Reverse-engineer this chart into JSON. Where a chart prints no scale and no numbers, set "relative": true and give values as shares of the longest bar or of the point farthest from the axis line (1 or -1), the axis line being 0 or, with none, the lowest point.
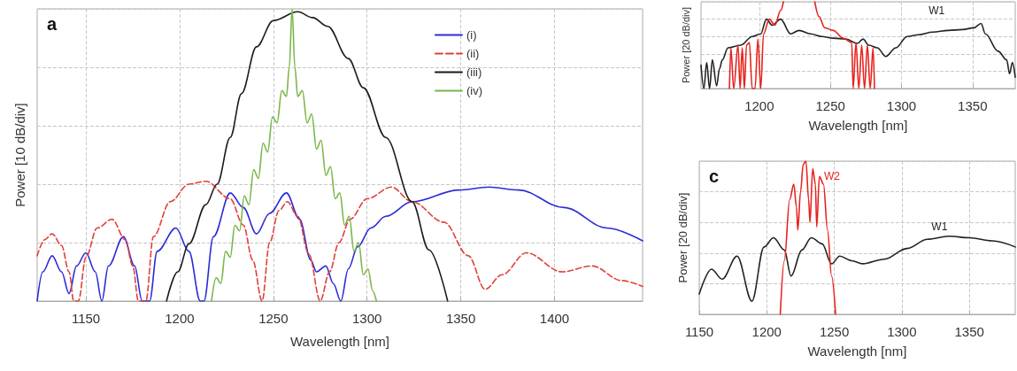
{
  "chart_data": [
    {
      "type": "line",
      "title": "a",
      "xlabel": "Wavelength [nm]",
      "ylabel": "Power [10 dB/div]",
      "relative": true,
      "xlim": [
        1124,
        1447
      ],
      "xticks": [
        1150,
        1200,
        1250,
        1300,
        1350,
        1400
      ],
      "grid": true,
      "legend": "top right",
      "series": [
        {
          "name": "(i)",
          "color": "#2b2bd8",
          "line_style": "solid",
          "x": [
            1124,
            1127,
            1132,
            1137,
            1141,
            1145,
            1150,
            1155,
            1158.5,
            1162,
            1170,
            1176,
            1180,
            1184,
            1188,
            1198,
            1205,
            1211,
            1213,
            1218,
            1227,
            1234,
            1241,
            1248,
            1257,
            1264,
            1270,
            1273,
            1278,
            1282,
            1286,
            1290,
            1295,
            1302,
            1310,
            1324,
            1349,
            1365,
            1381,
            1405,
            1428,
            1447
          ],
          "values": [
            0,
            0.1,
            0.155,
            0.1,
            0.026,
            0.12,
            0.165,
            0.1,
            0,
            0.12,
            0.22,
            0.12,
            0,
            0,
            0.17,
            0.25,
            0.17,
            0,
            0,
            0.22,
            0.37,
            0.32,
            0.23,
            0.3,
            0.37,
            0.28,
            0.14,
            0.1,
            0.12,
            0.06,
            0,
            0.11,
            0.186,
            0.25,
            0.29,
            0.34,
            0.38,
            0.39,
            0.38,
            0.32,
            0.25,
            0.206
          ]
        },
        {
          "name": "(ii)",
          "color": "#e0403c",
          "line_style": "dashed",
          "x": [
            1124,
            1128,
            1132,
            1137,
            1141,
            1143.5,
            1146,
            1150,
            1156,
            1164,
            1171,
            1175,
            1178,
            1182,
            1186,
            1195,
            1205,
            1214,
            1227,
            1234,
            1239,
            1244,
            1248,
            1253,
            1257.5,
            1263,
            1269,
            1275,
            1280,
            1285,
            1291,
            1300,
            1313,
            1324,
            1341,
            1354,
            1363,
            1372,
            1385,
            1404,
            1420,
            1436,
            1447
          ],
          "values": [
            0.155,
            0.21,
            0.23,
            0.19,
            0.1,
            0,
            0,
            0.15,
            0.25,
            0.28,
            0.21,
            0.12,
            0,
            0,
            0.22,
            0.34,
            0.4,
            0.41,
            0.35,
            0.26,
            0.14,
            0,
            0.2,
            0.31,
            0.34,
            0.29,
            0.16,
            0,
            0.1,
            0.2,
            0.28,
            0.35,
            0.39,
            0.34,
            0.27,
            0.155,
            0.04,
            0.09,
            0.165,
            0.1,
            0.12,
            0.07,
            0.05
          ]
        },
        {
          "name": "(iii)",
          "color": "#1a1a1a",
          "line_style": "solid",
          "x": [
            1193,
            1199,
            1205,
            1214,
            1220,
            1227,
            1233,
            1241,
            1250,
            1263,
            1271,
            1279,
            1290,
            1298,
            1310,
            1324,
            1333,
            1343
          ],
          "values": [
            0,
            0.1,
            0.196,
            0.33,
            0.4,
            0.56,
            0.71,
            0.87,
            0.96,
            0.99,
            0.97,
            0.94,
            0.83,
            0.73,
            0.56,
            0.34,
            0.175,
            0
          ]
        },
        {
          "name": "(iv)",
          "color": "#7ab648",
          "line_style": "solid",
          "x": [
            1217,
            1219.5,
            1222,
            1224.5,
            1227,
            1229.5,
            1232,
            1234.5,
            1237,
            1239.5,
            1242,
            1244.5,
            1247,
            1249.5,
            1252,
            1254.5,
            1257,
            1258.5,
            1260,
            1261.5,
            1263,
            1265.5,
            1268,
            1270.5,
            1273,
            1275.5,
            1278,
            1280.5,
            1283,
            1285.5,
            1288,
            1290.5,
            1293,
            1295.5,
            1298,
            1300.5,
            1303,
            1305
          ],
          "values": [
            0,
            0.08,
            0.06,
            0.17,
            0.15,
            0.26,
            0.24,
            0.36,
            0.33,
            0.45,
            0.42,
            0.54,
            0.51,
            0.63,
            0.61,
            0.72,
            0.7,
            0.8,
            1,
            0.8,
            0.7,
            0.72,
            0.61,
            0.64,
            0.52,
            0.55,
            0.43,
            0.46,
            0.35,
            0.37,
            0.26,
            0.29,
            0.17,
            0.2,
            0.09,
            0.11,
            0.035,
            0
          ]
        }
      ]
    },
    {
      "type": "line",
      "xlabel": "Wavelength [nm]",
      "ylabel": "Power [20 dB/div]",
      "relative": true,
      "xlim": [
        1159,
        1380
      ],
      "xticks": [
        1200,
        1250,
        1300,
        1350
      ],
      "grid": true,
      "annotations": [
        "W1"
      ],
      "series": [
        {
          "color": "#222222",
          "line_style": "solid",
          "x": [
            1159,
            1161,
            1163,
            1165,
            1167,
            1170,
            1172,
            1174,
            1178,
            1187,
            1195,
            1201,
            1205,
            1209,
            1215,
            1222,
            1228,
            1236,
            1244,
            1252,
            1261,
            1269,
            1273,
            1277,
            1283,
            1289,
            1296,
            1304,
            1312,
            1322,
            1333,
            1343,
            1351,
            1356,
            1359,
            1368,
            1374,
            1376,
            1378,
            1380
          ],
          "values": [
            0.27,
            0,
            0.3,
            0,
            0.33,
            0.03,
            0.23,
            0.33,
            0.47,
            0.5,
            0.6,
            0.63,
            0.8,
            0.73,
            0.8,
            0.63,
            0.67,
            0.63,
            0.6,
            0.58,
            0.57,
            0.52,
            0.57,
            0.5,
            0.47,
            0.37,
            0.47,
            0.6,
            0.62,
            0.65,
            0.67,
            0.68,
            0.7,
            0.75,
            0.63,
            0.43,
            0.33,
            0.17,
            0.3,
            0.13
          ]
        },
        {
          "color": "#e8221e",
          "line_style": "solid",
          "x": [
            1179,
            1180,
            1182,
            1185,
            1186.5,
            1188,
            1189.5,
            1191,
            1193,
            1195,
            1197,
            1199,
            1201,
            1203,
            1207,
            1211,
            1215,
            1217,
            1228,
            1239,
            1242,
            1246,
            1252,
            1259,
            1265,
            1266,
            1268,
            1270,
            1272,
            1274,
            1276,
            1278,
            1280,
            1281
          ],
          "values": [
            0,
            0.47,
            0,
            0.5,
            0,
            0.47,
            0,
            0.5,
            0.53,
            0,
            0,
            0.57,
            0,
            0.63,
            0.8,
            0.73,
            0.9,
            1,
            null,
            1,
            0.83,
            0.7,
            0.67,
            0.58,
            0.53,
            0,
            0.53,
            0,
            0.5,
            0,
            0.5,
            0,
            0.47,
            0
          ]
        }
      ]
    },
    {
      "type": "line",
      "title": "c",
      "xlabel": "Wavelength [nm]",
      "ylabel": "Power [20 dB/div]",
      "relative": true,
      "xlim": [
        1150,
        1384
      ],
      "xticks": [
        1150,
        1200,
        1250,
        1300,
        1350
      ],
      "grid": true,
      "annotations": [
        "W1",
        "W2"
      ],
      "series": [
        {
          "color": "#222222",
          "line_style": "solid",
          "x": [
            1150,
            1159,
            1167,
            1178,
            1189,
            1198,
            1205,
            1213,
            1218,
            1226,
            1233,
            1241,
            1248,
            1254,
            1263,
            1271,
            1287,
            1304,
            1319,
            1335,
            1350,
            1367,
            1384
          ],
          "values": [
            0.133,
            0.295,
            0.23,
            0.38,
            0.086,
            0.44,
            0.5,
            0.42,
            0.25,
            0.42,
            0.5,
            0.46,
            0.33,
            0.38,
            0.35,
            0.33,
            0.36,
            0.43,
            0.49,
            0.51,
            0.5,
            0.48,
            0.44
          ]
        },
        {
          "color": "#e8221e",
          "line_style": "solid",
          "x": [
            1210,
            1213,
            1217,
            1220,
            1222,
            1223,
            1225,
            1227,
            1229,
            1231,
            1232,
            1234,
            1236,
            1237,
            1239,
            1242,
            1245,
            1248,
            1251
          ],
          "values": [
            0,
            0.35,
            0.75,
            0.85,
            0.7,
            0.55,
            0.8,
            0.98,
            1,
            0.75,
            0.6,
            0.95,
            0.85,
            0.57,
            0.9,
            0.85,
            0.55,
            0.25,
            0
          ]
        }
      ]
    }
  ]
}
